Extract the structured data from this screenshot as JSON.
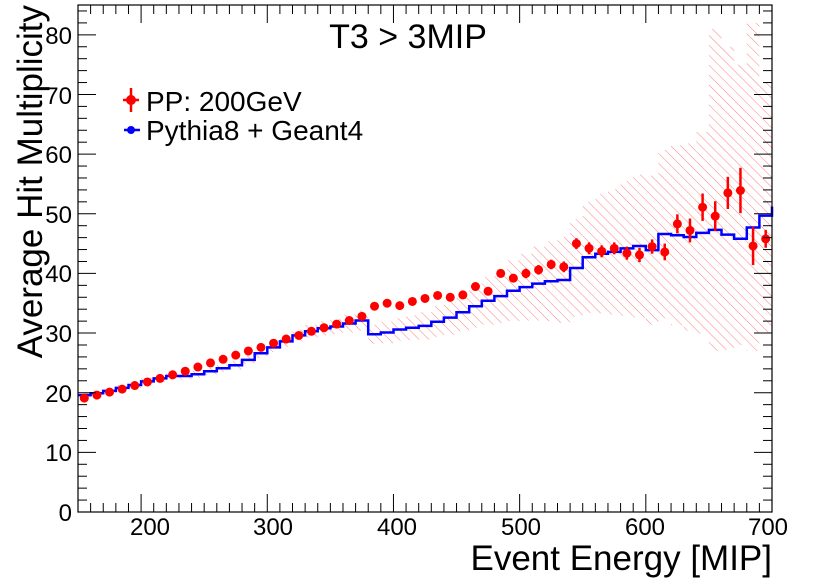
{
  "chart_data": {
    "type": "scatter",
    "title": "T3 > 3MIP",
    "xlabel": "Event Energy [MIP]",
    "ylabel": "Average Hit Multiplicity",
    "xlim": [
      150,
      700
    ],
    "ylim": [
      0,
      85
    ],
    "x_ticks": [
      "200",
      "300",
      "400",
      "500",
      "600",
      "700"
    ],
    "y_ticks": [
      "0",
      "10",
      "20",
      "30",
      "40",
      "50",
      "60",
      "70",
      "80"
    ],
    "legend_position": "top-left",
    "colors": {
      "data": "#ff0000",
      "mc": "#0000ff",
      "band": "#ff8080",
      "frame": "#000000"
    },
    "series": [
      {
        "name": "PP: 200GeV",
        "style": "points-with-error-bars",
        "x": [
          155,
          165,
          175,
          185,
          195,
          205,
          215,
          225,
          235,
          245,
          255,
          265,
          275,
          285,
          295,
          305,
          315,
          325,
          335,
          345,
          355,
          365,
          375,
          385,
          395,
          405,
          415,
          425,
          435,
          445,
          455,
          465,
          475,
          485,
          495,
          505,
          515,
          525,
          535,
          545,
          555,
          565,
          575,
          585,
          595,
          605,
          615,
          625,
          635,
          645,
          655,
          665,
          675,
          685,
          695
        ],
        "y": [
          19.1,
          19.6,
          20.1,
          20.6,
          21.2,
          21.8,
          22.4,
          23.0,
          23.6,
          24.3,
          25.0,
          25.6,
          26.3,
          27.0,
          27.6,
          28.3,
          29.0,
          29.6,
          30.3,
          30.9,
          31.5,
          32.1,
          32.8,
          34.5,
          35.0,
          34.6,
          35.3,
          35.8,
          36.3,
          36.0,
          36.4,
          37.8,
          37.0,
          40.0,
          39.2,
          40.0,
          40.6,
          41.5,
          41.1,
          45.0,
          44.2,
          43.7,
          44.2,
          43.4,
          43.1,
          44.5,
          43.6,
          48.3,
          47.2,
          51.1,
          49.6,
          53.5,
          53.9,
          44.6,
          45.8
        ],
        "yerr": [
          0.4,
          0.4,
          0.4,
          0.4,
          0.4,
          0.4,
          0.4,
          0.4,
          0.4,
          0.4,
          0.4,
          0.4,
          0.4,
          0.5,
          0.5,
          0.5,
          0.5,
          0.5,
          0.5,
          0.5,
          0.5,
          0.5,
          0.6,
          0.6,
          0.6,
          0.6,
          0.6,
          0.6,
          0.6,
          0.6,
          0.7,
          0.7,
          0.7,
          0.7,
          0.7,
          0.8,
          0.8,
          0.8,
          0.9,
          0.9,
          1.0,
          1.0,
          1.0,
          1.1,
          1.2,
          1.2,
          1.4,
          1.6,
          2.0,
          2.3,
          2.5,
          2.7,
          3.8,
          3.2,
          1.5
        ]
      },
      {
        "name": "Pythia8 + Geant4",
        "style": "step",
        "x_edges": [
          150,
          160,
          170,
          180,
          190,
          200,
          210,
          220,
          230,
          240,
          250,
          260,
          270,
          280,
          290,
          300,
          310,
          320,
          330,
          340,
          350,
          360,
          370,
          380,
          390,
          400,
          410,
          420,
          430,
          440,
          450,
          460,
          470,
          480,
          490,
          500,
          510,
          520,
          530,
          540,
          550,
          560,
          570,
          580,
          590,
          600,
          610,
          620,
          630,
          640,
          650,
          660,
          670,
          680,
          690,
          700
        ],
        "values": [
          19.6,
          19.9,
          20.3,
          20.8,
          21.3,
          21.9,
          22.4,
          22.8,
          22.8,
          23.1,
          23.6,
          24.1,
          24.6,
          25.5,
          26.6,
          27.6,
          28.6,
          29.6,
          30.3,
          30.8,
          31.1,
          31.6,
          32.1,
          29.8,
          30.1,
          30.6,
          30.9,
          31.2,
          31.9,
          32.6,
          33.5,
          34.5,
          35.4,
          36.2,
          37.1,
          37.7,
          38.3,
          38.7,
          38.9,
          40.9,
          42.7,
          43.3,
          43.6,
          44.2,
          44.6,
          43.9,
          46.6,
          46.4,
          46.1,
          46.8,
          47.3,
          46.5,
          45.8,
          47.7,
          49.7,
          51.2
        ]
      },
      {
        "name": "Pythia8 + Geant4 uncertainty",
        "style": "hatched-band",
        "x_edges": [
          150,
          160,
          170,
          180,
          190,
          200,
          210,
          220,
          230,
          240,
          250,
          260,
          270,
          280,
          290,
          300,
          310,
          320,
          330,
          340,
          350,
          360,
          370,
          380,
          390,
          400,
          410,
          420,
          430,
          440,
          450,
          460,
          470,
          480,
          490,
          500,
          510,
          520,
          530,
          540,
          550,
          560,
          570,
          580,
          590,
          600,
          610,
          620,
          630,
          640,
          650,
          660,
          670,
          680,
          690,
          700
        ],
        "low": [
          19.1,
          19.4,
          19.8,
          20.3,
          20.8,
          21.3,
          21.8,
          22.2,
          22.2,
          22.5,
          23.0,
          23.5,
          23.9,
          24.8,
          25.8,
          26.8,
          27.7,
          28.6,
          29.2,
          29.6,
          29.8,
          30.1,
          30.4,
          28.2,
          28.3,
          28.7,
          28.8,
          28.9,
          29.3,
          29.7,
          30.3,
          30.9,
          31.4,
          31.7,
          32.0,
          32.1,
          32.1,
          32.0,
          31.7,
          32.7,
          33.4,
          33.3,
          33.1,
          32.9,
          32.6,
          31.4,
          32.5,
          31.3,
          30.4,
          29.9,
          27.0,
          27.2,
          28.0,
          27.0,
          30.0,
          33.0
        ],
        "high": [
          20.1,
          20.4,
          20.8,
          21.3,
          21.8,
          22.5,
          23.0,
          23.4,
          23.4,
          23.7,
          24.2,
          24.7,
          25.3,
          26.2,
          27.4,
          28.4,
          29.5,
          30.6,
          31.4,
          32.0,
          32.4,
          33.1,
          33.8,
          31.4,
          31.9,
          32.5,
          33.0,
          33.5,
          34.5,
          35.5,
          36.7,
          38.1,
          39.4,
          40.7,
          42.2,
          43.3,
          44.5,
          45.4,
          46.1,
          49.1,
          52.0,
          53.3,
          54.1,
          55.5,
          56.6,
          56.4,
          60.7,
          61.5,
          61.8,
          63.7,
          81.0,
          78.0,
          75.0,
          82.0,
          72.0,
          70.0
        ]
      }
    ]
  }
}
